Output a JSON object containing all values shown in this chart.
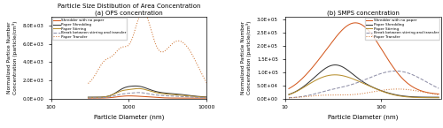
{
  "title_a": "Particle Size Distibution of Area Concentration\n(a) OPS concentration",
  "title_b": "(b) SMPS concentration",
  "xlabel": "Particle Diameter (nm)",
  "ylabel_a": "Normalized Partice Number\nConcentration (particle/cm³)",
  "ylabel_b": "Normalized Particle Number\nConcentration (particle/cm³)",
  "legend_labels": [
    "Shredder with no paper",
    "Paper Shredding",
    "Paper Stirring",
    "Break between stirring and transfer",
    "Paper Transfer"
  ],
  "colors": [
    "#d45a20",
    "#383838",
    "#b89030",
    "#9090a8",
    "#d07838"
  ],
  "xlim_a": [
    100,
    10000
  ],
  "xlim_b": [
    10,
    420
  ],
  "ylim_a": [
    0,
    9000
  ],
  "ylim_b": [
    0,
    310000.0
  ],
  "yticks_a": [
    0,
    2000,
    4000,
    6000,
    8000
  ],
  "ytick_labels_a": [
    "0.0E+00",
    "2.0E+03",
    "4.0E+03",
    "6.0E+03",
    "8.0E+03"
  ],
  "yticks_b": [
    0,
    50000,
    100000,
    150000,
    200000,
    250000,
    300000
  ],
  "ytick_labels_b": [
    "0.0E+00",
    "5.0E+04",
    "1.0E+05",
    "1.5E+05",
    "2.0E+05",
    "2.5E+05",
    "3.0E+05"
  ],
  "xticks_a": [
    100,
    1000,
    10000
  ],
  "xtick_labels_a": [
    "100",
    "1000",
    "10000"
  ],
  "xticks_b": [
    10,
    100
  ],
  "xtick_labels_b": [
    "10",
    "100"
  ]
}
